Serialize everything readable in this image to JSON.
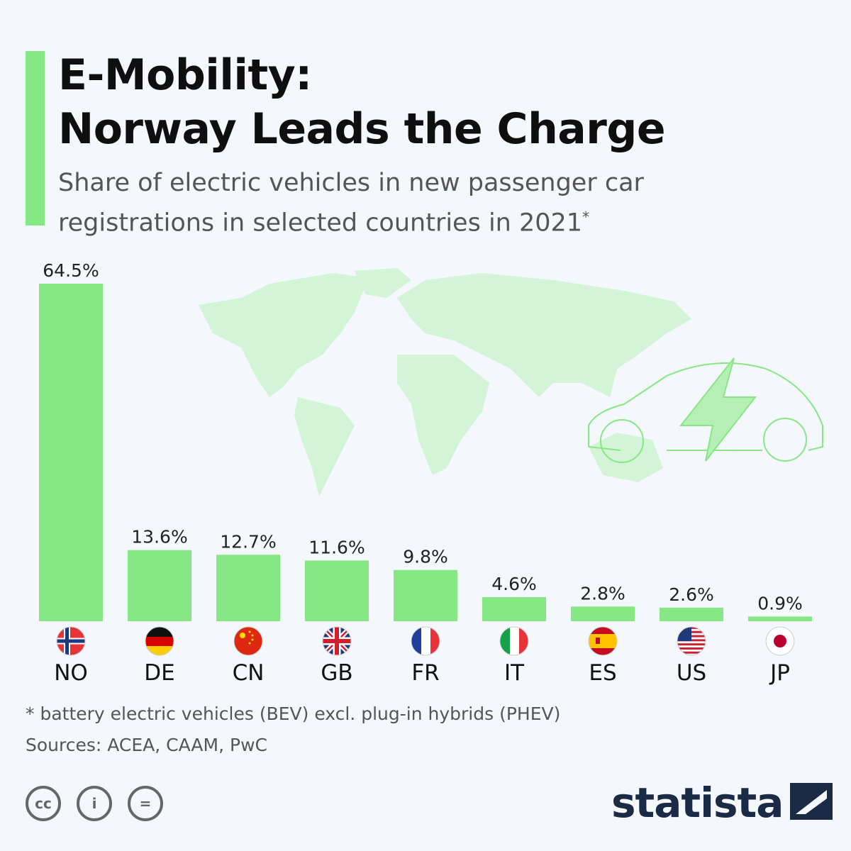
{
  "title_line1": "E-Mobility:",
  "title_line2": "Norway Leads the Charge",
  "subtitle": "Share of electric vehicles in new passenger car registrations in selected countries in 2021",
  "subtitle_mark": "*",
  "footnote": "* battery electric vehicles (BEV) excl. plug-in hybrids (PHEV)",
  "sources": "Sources: ACEA, CAAM, PwC",
  "license_icons": [
    "cc-icon",
    "attribution-icon",
    "no-derivatives-icon"
  ],
  "license_text": [
    "cc",
    "i",
    "="
  ],
  "logo": "statista",
  "colors": {
    "bar": "#86e884",
    "background": "#f4f7fb",
    "map": "#d3f4d6",
    "title": "#0f0f0f"
  },
  "chart_data": {
    "type": "bar",
    "categories": [
      "NO",
      "DE",
      "CN",
      "GB",
      "FR",
      "IT",
      "ES",
      "US",
      "JP"
    ],
    "values": [
      64.5,
      13.6,
      12.7,
      11.6,
      9.8,
      4.6,
      2.8,
      2.6,
      0.9
    ],
    "labels": [
      "64.5%",
      "13.6%",
      "12.7%",
      "11.6%",
      "9.8%",
      "4.6%",
      "2.8%",
      "2.6%",
      "0.9%"
    ],
    "unit": "%",
    "ylim": [
      0,
      64.5
    ],
    "grid": false
  }
}
